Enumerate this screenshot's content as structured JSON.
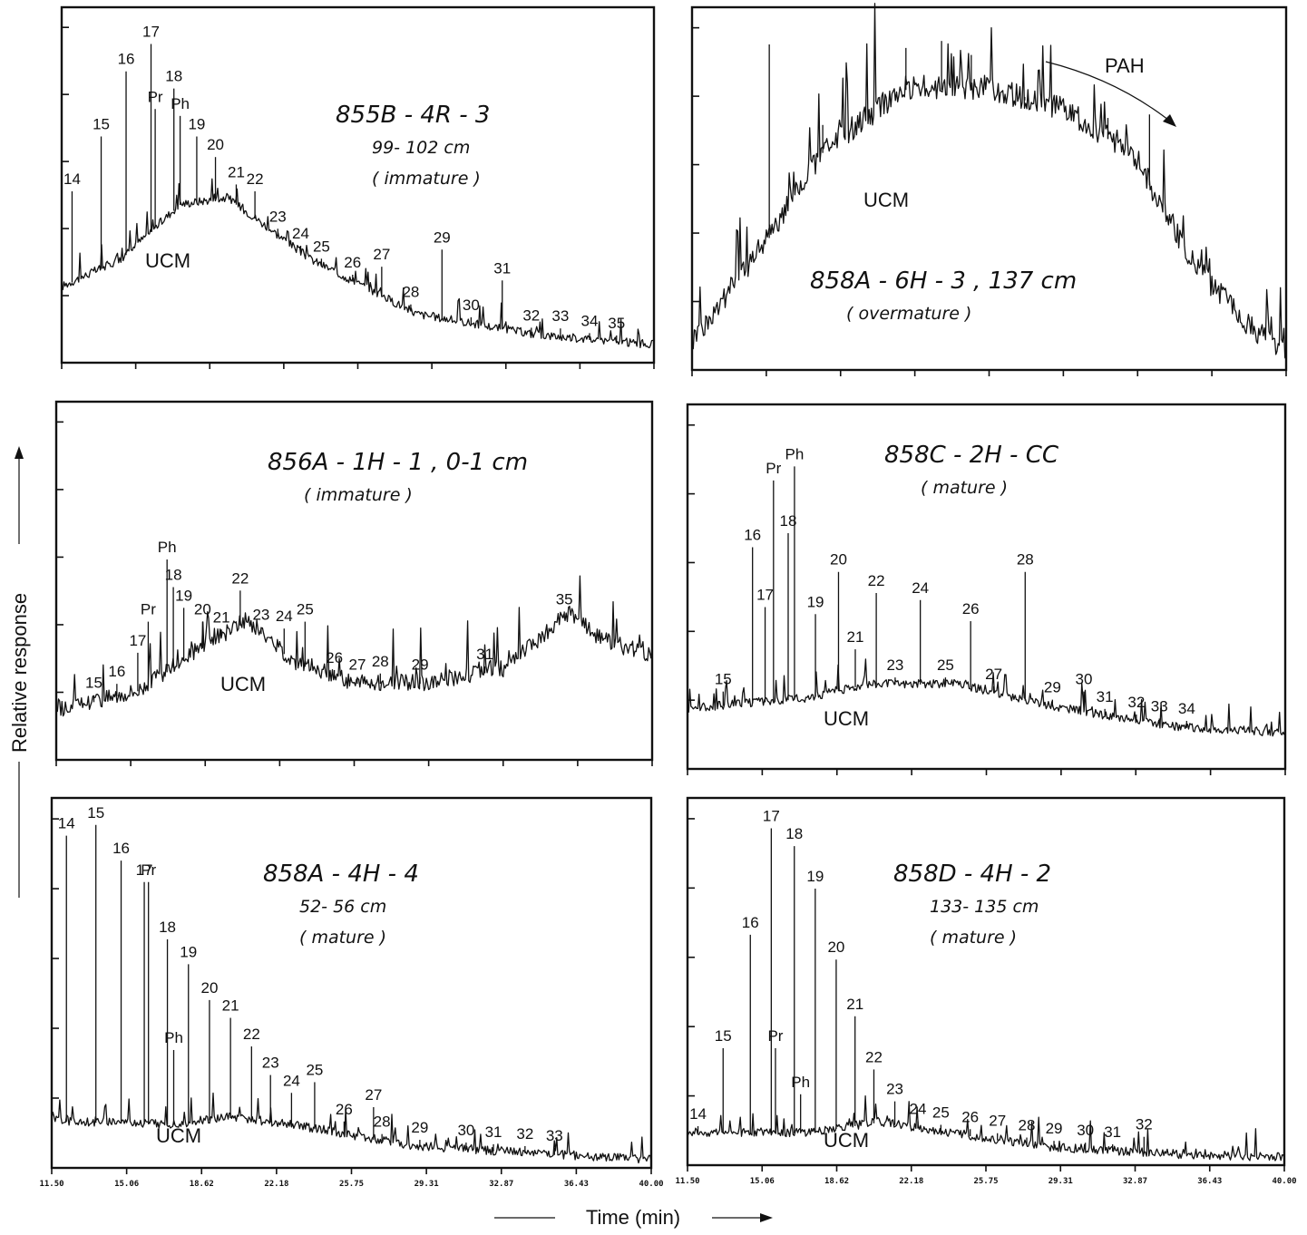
{
  "figure": {
    "ylabel": "Relative response",
    "xlabel": "Time (min)",
    "xticks": [
      "11.50",
      "15.06",
      "18.62",
      "22.18",
      "25.75",
      "29.31",
      "32.87",
      "36.43",
      "40.00"
    ]
  },
  "chart_data": [
    {
      "type": "line",
      "sample": "855B-4R-3",
      "sample_lines": [
        "855B - 4R - 3",
        "99- 102 cm",
        "( immature )"
      ],
      "ucm_label": "UCM",
      "xlim": [
        11.5,
        40.0
      ],
      "peaks": [
        {
          "label": "14",
          "t": 12.0,
          "h": 0.5
        },
        {
          "label": "15",
          "t": 13.4,
          "h": 0.66
        },
        {
          "label": "16",
          "t": 14.6,
          "h": 0.85
        },
        {
          "label": "17",
          "t": 15.8,
          "h": 0.93
        },
        {
          "label": "Pr",
          "t": 16.0,
          "h": 0.74
        },
        {
          "label": "18",
          "t": 16.9,
          "h": 0.8
        },
        {
          "label": "Ph",
          "t": 17.2,
          "h": 0.72
        },
        {
          "label": "19",
          "t": 18.0,
          "h": 0.66
        },
        {
          "label": "20",
          "t": 18.9,
          "h": 0.6
        },
        {
          "label": "21",
          "t": 19.9,
          "h": 0.52
        },
        {
          "label": "22",
          "t": 20.8,
          "h": 0.5
        },
        {
          "label": "23",
          "t": 21.9,
          "h": 0.38
        },
        {
          "label": "24",
          "t": 23.0,
          "h": 0.33
        },
        {
          "label": "25",
          "t": 24.0,
          "h": 0.3
        },
        {
          "label": "26",
          "t": 25.5,
          "h": 0.2
        },
        {
          "label": "27",
          "t": 26.9,
          "h": 0.28
        },
        {
          "label": "28",
          "t": 28.3,
          "h": 0.17
        },
        {
          "label": "29",
          "t": 29.8,
          "h": 0.33
        },
        {
          "label": "30",
          "t": 31.2,
          "h": 0.12
        },
        {
          "label": "31",
          "t": 32.7,
          "h": 0.24
        },
        {
          "label": "32",
          "t": 34.1,
          "h": 0.1
        },
        {
          "label": "33",
          "t": 35.5,
          "h": 0.1
        },
        {
          "label": "34",
          "t": 36.9,
          "h": 0.04
        },
        {
          "label": "35",
          "t": 38.2,
          "h": 0.06
        }
      ]
    },
    {
      "type": "line",
      "sample": "858A-6H-3",
      "sample_lines": [
        "858A - 6H - 3 , 137 cm",
        "( overmature )"
      ],
      "ucm_label": "UCM",
      "annotation": "PAH",
      "xlim": [
        11.5,
        40.0
      ],
      "peaks": []
    },
    {
      "type": "line",
      "sample": "856A-1H-1",
      "sample_lines": [
        "856A - 1H - 1 , 0-1 cm",
        "( immature )"
      ],
      "ucm_label": "UCM",
      "xlim": [
        11.5,
        40.0
      ],
      "peaks": [
        {
          "label": "15",
          "t": 13.3,
          "h": 0.14
        },
        {
          "label": "16",
          "t": 14.4,
          "h": 0.22
        },
        {
          "label": "17",
          "t": 15.4,
          "h": 0.31
        },
        {
          "label": "Pr",
          "t": 15.9,
          "h": 0.4
        },
        {
          "label": "Ph",
          "t": 16.8,
          "h": 0.58
        },
        {
          "label": "18",
          "t": 17.1,
          "h": 0.5
        },
        {
          "label": "19",
          "t": 17.6,
          "h": 0.44
        },
        {
          "label": "20",
          "t": 18.5,
          "h": 0.4
        },
        {
          "label": "21",
          "t": 19.4,
          "h": 0.32
        },
        {
          "label": "22",
          "t": 20.3,
          "h": 0.49
        },
        {
          "label": "23",
          "t": 21.3,
          "h": 0.22
        },
        {
          "label": "24",
          "t": 22.4,
          "h": 0.38
        },
        {
          "label": "25",
          "t": 23.4,
          "h": 0.4
        },
        {
          "label": "26",
          "t": 24.8,
          "h": 0.25
        },
        {
          "label": "27",
          "t": 25.9,
          "h": 0.22
        },
        {
          "label": "28",
          "t": 27.0,
          "h": 0.25
        },
        {
          "label": "29",
          "t": 28.9,
          "h": 0.2
        },
        {
          "label": "31",
          "t": 32.0,
          "h": 0.22
        },
        {
          "label": "35",
          "t": 35.8,
          "h": 0.3
        }
      ]
    },
    {
      "type": "line",
      "sample": "858C-2H-CC",
      "sample_lines": [
        "858C - 2H - CC",
        "( mature )"
      ],
      "ucm_label": "UCM",
      "xlim": [
        11.5,
        40.0
      ],
      "peaks": [
        {
          "label": "15",
          "t": 13.2,
          "h": 0.22
        },
        {
          "label": "16",
          "t": 14.6,
          "h": 0.63
        },
        {
          "label": "17",
          "t": 15.2,
          "h": 0.46
        },
        {
          "label": "Pr",
          "t": 15.6,
          "h": 0.82
        },
        {
          "label": "18",
          "t": 16.3,
          "h": 0.67
        },
        {
          "label": "Ph",
          "t": 16.6,
          "h": 0.86
        },
        {
          "label": "19",
          "t": 17.6,
          "h": 0.44
        },
        {
          "label": "20",
          "t": 18.7,
          "h": 0.56
        },
        {
          "label": "21",
          "t": 19.5,
          "h": 0.34
        },
        {
          "label": "22",
          "t": 20.5,
          "h": 0.5
        },
        {
          "label": "23",
          "t": 21.4,
          "h": 0.26
        },
        {
          "label": "24",
          "t": 22.6,
          "h": 0.48
        },
        {
          "label": "25",
          "t": 23.8,
          "h": 0.22
        },
        {
          "label": "26",
          "t": 25.0,
          "h": 0.42
        },
        {
          "label": "27",
          "t": 26.1,
          "h": 0.2
        },
        {
          "label": "28",
          "t": 27.6,
          "h": 0.56
        },
        {
          "label": "29",
          "t": 28.9,
          "h": 0.17
        },
        {
          "label": "30",
          "t": 30.4,
          "h": 0.22
        },
        {
          "label": "31",
          "t": 31.4,
          "h": 0.13
        },
        {
          "label": "32",
          "t": 32.9,
          "h": 0.12
        },
        {
          "label": "33",
          "t": 34.0,
          "h": 0.08
        },
        {
          "label": "34",
          "t": 35.3,
          "h": 0.07
        }
      ]
    },
    {
      "type": "line",
      "sample": "858A-4H-4",
      "sample_lines": [
        "858A - 4H - 4",
        "52- 56 cm",
        "( mature )"
      ],
      "ucm_label": "UCM",
      "xlim": [
        11.5,
        40.0
      ],
      "peaks": [
        {
          "label": "14",
          "t": 12.2,
          "h": 0.93
        },
        {
          "label": "15",
          "t": 13.6,
          "h": 0.96
        },
        {
          "label": "16",
          "t": 14.8,
          "h": 0.86
        },
        {
          "label": "17",
          "t": 15.9,
          "h": 0.8
        },
        {
          "label": "Pr",
          "t": 16.1,
          "h": 0.8
        },
        {
          "label": "18",
          "t": 17.0,
          "h": 0.64
        },
        {
          "label": "Ph",
          "t": 17.3,
          "h": 0.33
        },
        {
          "label": "19",
          "t": 18.0,
          "h": 0.57
        },
        {
          "label": "20",
          "t": 19.0,
          "h": 0.47
        },
        {
          "label": "21",
          "t": 20.0,
          "h": 0.42
        },
        {
          "label": "22",
          "t": 21.0,
          "h": 0.34
        },
        {
          "label": "23",
          "t": 21.9,
          "h": 0.26
        },
        {
          "label": "24",
          "t": 22.9,
          "h": 0.21
        },
        {
          "label": "25",
          "t": 24.0,
          "h": 0.24
        },
        {
          "label": "26",
          "t": 25.4,
          "h": 0.13
        },
        {
          "label": "27",
          "t": 26.8,
          "h": 0.17
        },
        {
          "label": "28",
          "t": 27.2,
          "h": 0.08
        },
        {
          "label": "29",
          "t": 29.0,
          "h": 0.06
        },
        {
          "label": "30",
          "t": 31.2,
          "h": 0.04
        },
        {
          "label": "31",
          "t": 32.5,
          "h": 0.03
        },
        {
          "label": "32",
          "t": 34.0,
          "h": 0.03
        },
        {
          "label": "33",
          "t": 35.4,
          "h": 0.02
        }
      ]
    },
    {
      "type": "line",
      "sample": "858D-4H-2",
      "sample_lines": [
        "858D - 4H - 2",
        "133- 135 cm",
        "( mature )"
      ],
      "ucm_label": "UCM",
      "xlim": [
        11.5,
        40.0
      ],
      "peaks": [
        {
          "label": "14",
          "t": 12.0,
          "h": 0.08
        },
        {
          "label": "15",
          "t": 13.2,
          "h": 0.33
        },
        {
          "label": "16",
          "t": 14.5,
          "h": 0.65
        },
        {
          "label": "17",
          "t": 15.5,
          "h": 0.95
        },
        {
          "label": "Pr",
          "t": 15.7,
          "h": 0.33
        },
        {
          "label": "18",
          "t": 16.6,
          "h": 0.9
        },
        {
          "label": "Ph",
          "t": 16.9,
          "h": 0.2
        },
        {
          "label": "19",
          "t": 17.6,
          "h": 0.78
        },
        {
          "label": "20",
          "t": 18.6,
          "h": 0.58
        },
        {
          "label": "21",
          "t": 19.5,
          "h": 0.42
        },
        {
          "label": "22",
          "t": 20.4,
          "h": 0.27
        },
        {
          "label": "23",
          "t": 21.4,
          "h": 0.18
        },
        {
          "label": "24",
          "t": 22.5,
          "h": 0.11
        },
        {
          "label": "25",
          "t": 23.6,
          "h": 0.08
        },
        {
          "label": "26",
          "t": 25.0,
          "h": 0.07
        },
        {
          "label": "27",
          "t": 26.3,
          "h": 0.03
        },
        {
          "label": "28",
          "t": 27.7,
          "h": 0.06
        },
        {
          "label": "29",
          "t": 29.0,
          "h": 0.02
        },
        {
          "label": "30",
          "t": 30.5,
          "h": 0.06
        },
        {
          "label": "31",
          "t": 31.8,
          "h": 0.01
        },
        {
          "label": "32",
          "t": 33.3,
          "h": 0.08
        }
      ]
    }
  ]
}
